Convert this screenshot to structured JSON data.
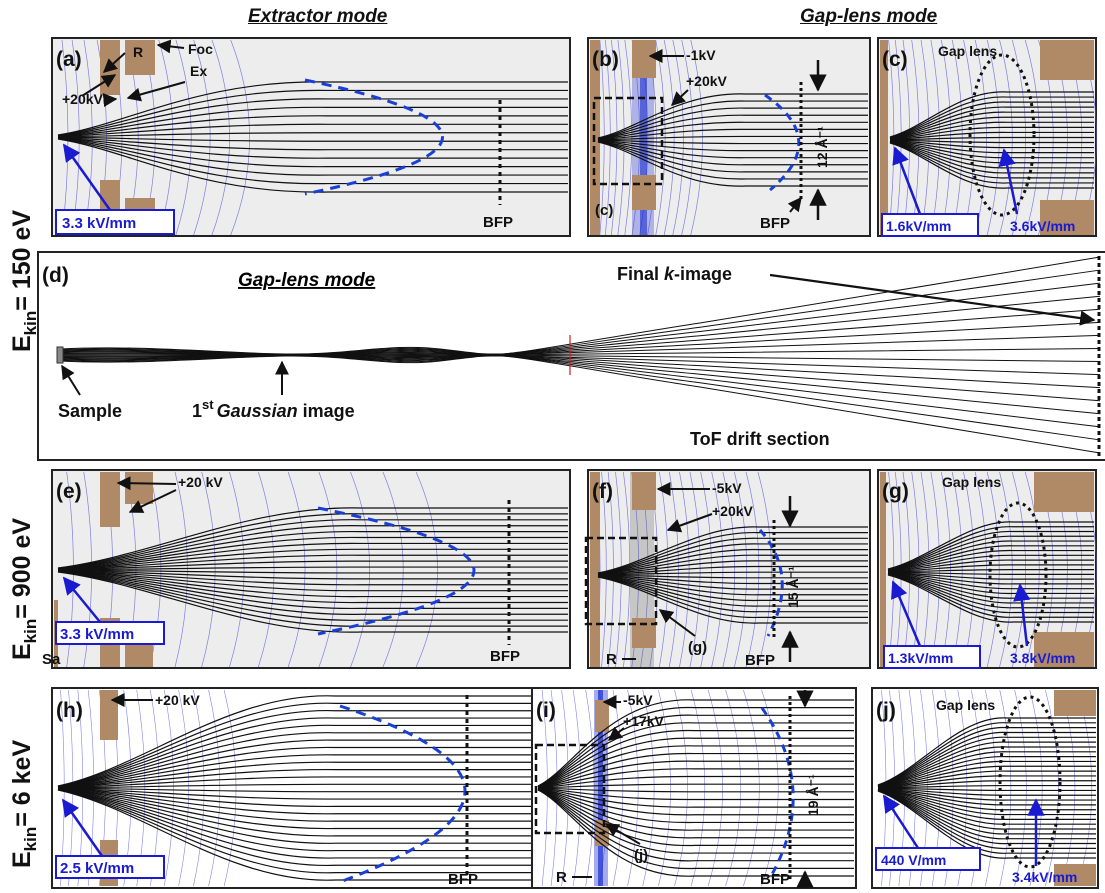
{
  "headers": {
    "extractor": "Extractor mode",
    "gaplens": "Gap-lens mode",
    "gaplens_d": "Gap-lens mode"
  },
  "rows": {
    "r150": {
      "E": "E",
      "sub": "kin",
      "val": "= 150 eV"
    },
    "r900": {
      "E": "E",
      "sub": "kin",
      "val": "= 900 eV"
    },
    "r6k": {
      "E": "E",
      "sub": "kin",
      "val": "= 6 keV"
    }
  },
  "panels": {
    "a": {
      "label": "(a)",
      "R": "R",
      "Foc": "Foc",
      "Ex": "Ex",
      "voltage": "+20kV",
      "field": "3.3 kV/mm",
      "bfp": "BFP"
    },
    "b": {
      "label": "(b)",
      "v1": "-1kV",
      "v2": "+20kV",
      "inset": "(c)",
      "k": "12 Å⁻¹",
      "bfp": "BFP"
    },
    "c": {
      "label": "(c)",
      "gap": "Gap lens",
      "f1": "1.6kV/mm",
      "f2": "3.6kV/mm"
    },
    "d": {
      "label": "(d)",
      "sample": "Sample",
      "gauss_pre": "1",
      "gauss_sup": "st",
      "gauss_it": "Gaussian",
      "gauss_post": " image",
      "final_pre": "Final ",
      "final_it": "k",
      "final_post": "-image",
      "tof": "ToF drift section"
    },
    "e": {
      "label": "(e)",
      "voltage": "+20 kV",
      "field": "3.3 kV/mm",
      "sa": "Sa",
      "bfp": "BFP"
    },
    "f": {
      "label": "(f)",
      "v1": "-5kV",
      "v2": "+20kV",
      "inset": "(g)",
      "R": "R",
      "k": "15 Å⁻¹",
      "bfp": "BFP"
    },
    "g": {
      "label": "(g)",
      "gap": "Gap lens",
      "f1": "1.3kV/mm",
      "f2": "3.8kV/mm"
    },
    "h": {
      "label": "(h)",
      "voltage": "+20 kV",
      "field": "2.5 kV/mm",
      "bfp": "BFP"
    },
    "i": {
      "label": "(i)",
      "v1": "-5kV",
      "v2": "+17kV",
      "inset": "(j)",
      "R": "R",
      "k": "19 Å⁻¹",
      "bfp": "BFP"
    },
    "j": {
      "label": "(j)",
      "gap": "Gap lens",
      "f1": "440 V/mm",
      "f2": "3.4kV/mm"
    }
  },
  "colors": {
    "electrode": "#b08a66",
    "trajectory": "#111111",
    "equipotential": "#5a5ae0",
    "bfp_dashed": "#1a3fd6",
    "field_label": "#1a1ad0"
  }
}
